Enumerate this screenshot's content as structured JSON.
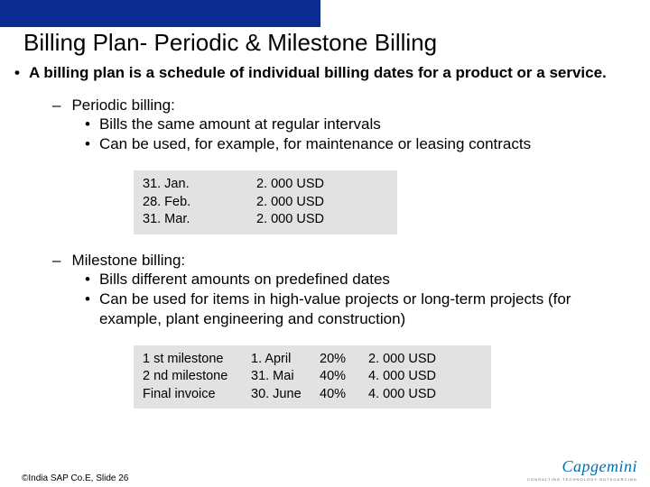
{
  "accent_bar_color": "#0b2b91",
  "title": "Billing Plan- Periodic & Milestone Billing",
  "intro_bullet": "A billing plan is a schedule of individual billing dates for a product or a service.",
  "periodic": {
    "heading": "Periodic billing:",
    "points": [
      "Bills the same amount at regular intervals",
      "Can be used, for example, for maintenance or leasing contracts"
    ],
    "table": {
      "background_color": "#e2e2e2",
      "rows": [
        {
          "date": "31. Jan.",
          "amount": "2. 000 USD"
        },
        {
          "date": "28. Feb.",
          "amount": "2. 000 USD"
        },
        {
          "date": "31. Mar.",
          "amount": "2. 000 USD"
        }
      ]
    }
  },
  "milestone": {
    "heading": "Milestone billing:",
    "points": [
      "Bills different amounts on predefined dates",
      "Can be used for items in high-value projects or long-term projects (for example, plant engineering and construction)"
    ],
    "table": {
      "background_color": "#e2e2e2",
      "rows": [
        {
          "label": "1 st milestone",
          "date": "1. April",
          "pct": "20%",
          "amount": "2. 000 USD"
        },
        {
          "label": "2 nd milestone",
          "date": "31. Mai",
          "pct": "40%",
          "amount": "4. 000 USD"
        },
        {
          "label": "Final invoice",
          "date": "30. June",
          "pct": "40%",
          "amount": "4. 000 USD"
        }
      ]
    }
  },
  "footer": "©India SAP Co.E, Slide 26",
  "logo": {
    "brand": "Capgemini",
    "tagline": "CONSULTING.TECHNOLOGY.OUTSOURCING",
    "brand_color": "#0070ad"
  }
}
